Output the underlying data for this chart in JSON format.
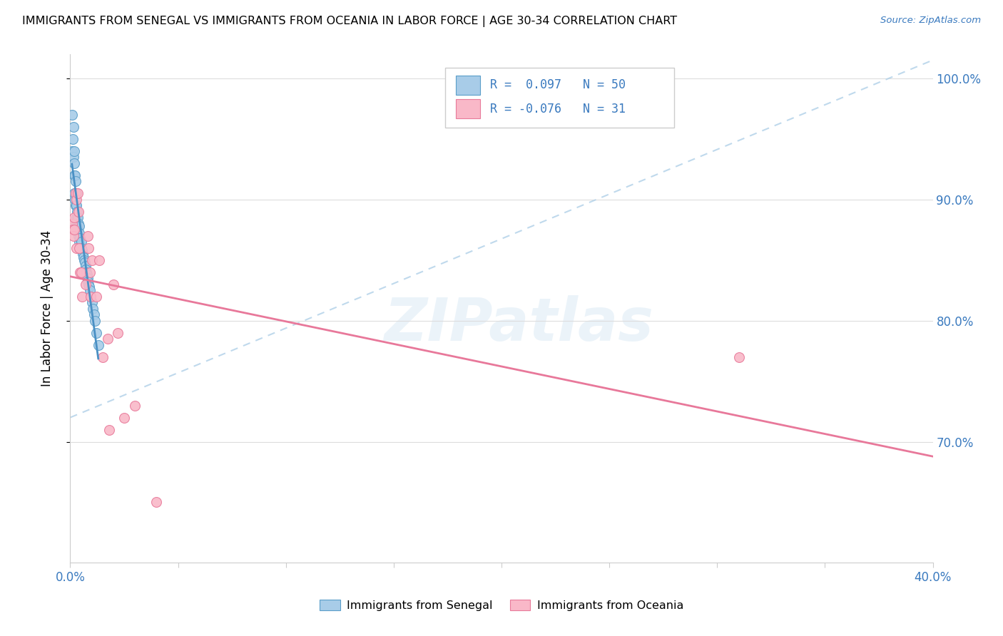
{
  "title": "IMMIGRANTS FROM SENEGAL VS IMMIGRANTS FROM OCEANIA IN LABOR FORCE | AGE 30-34 CORRELATION CHART",
  "source": "Source: ZipAtlas.com",
  "ylabel": "In Labor Force | Age 30-34",
  "watermark": "ZIPatlas",
  "legend_blue_r": "0.097",
  "legend_blue_n": "50",
  "legend_pink_r": "-0.076",
  "legend_pink_n": "31",
  "blue_color": "#a8cce8",
  "pink_color": "#f9b8c8",
  "blue_edge_color": "#5a9ec9",
  "pink_edge_color": "#e87a9a",
  "blue_line_color": "#4a90c4",
  "pink_line_color": "#e8789a",
  "blue_dash_color": "#b0d0e8",
  "xlim": [
    0.0,
    0.4
  ],
  "ylim": [
    0.6,
    1.02
  ],
  "y_ticks": [
    1.0,
    0.9,
    0.8,
    0.7
  ],
  "senegal_x": [
    0.0008,
    0.0008,
    0.0012,
    0.0015,
    0.0015,
    0.0018,
    0.0018,
    0.002,
    0.002,
    0.0022,
    0.0022,
    0.0025,
    0.0025,
    0.0028,
    0.0028,
    0.003,
    0.003,
    0.0032,
    0.0035,
    0.0035,
    0.0038,
    0.0038,
    0.004,
    0.004,
    0.0042,
    0.0045,
    0.0048,
    0.005,
    0.0052,
    0.0055,
    0.0058,
    0.006,
    0.0065,
    0.0068,
    0.007,
    0.0072,
    0.0075,
    0.0078,
    0.008,
    0.0082,
    0.0085,
    0.0088,
    0.009,
    0.0095,
    0.01,
    0.0105,
    0.011,
    0.0115,
    0.012,
    0.013
  ],
  "senegal_y": [
    0.97,
    0.94,
    0.95,
    0.96,
    0.935,
    0.94,
    0.92,
    0.93,
    0.905,
    0.92,
    0.9,
    0.915,
    0.895,
    0.905,
    0.885,
    0.895,
    0.88,
    0.89,
    0.885,
    0.875,
    0.88,
    0.87,
    0.878,
    0.865,
    0.872,
    0.868,
    0.862,
    0.865,
    0.86,
    0.858,
    0.855,
    0.852,
    0.85,
    0.848,
    0.845,
    0.842,
    0.84,
    0.838,
    0.835,
    0.832,
    0.83,
    0.828,
    0.825,
    0.82,
    0.815,
    0.81,
    0.805,
    0.8,
    0.79,
    0.78
  ],
  "oceania_x": [
    0.001,
    0.0012,
    0.0015,
    0.0018,
    0.002,
    0.0025,
    0.0028,
    0.003,
    0.0035,
    0.0038,
    0.004,
    0.0045,
    0.005,
    0.0055,
    0.007,
    0.008,
    0.0085,
    0.009,
    0.0095,
    0.01,
    0.012,
    0.0135,
    0.015,
    0.0175,
    0.018,
    0.02,
    0.022,
    0.025,
    0.03,
    0.04,
    0.31
  ],
  "oceania_y": [
    0.88,
    0.875,
    0.87,
    0.885,
    0.875,
    0.905,
    0.9,
    0.86,
    0.905,
    0.89,
    0.86,
    0.84,
    0.84,
    0.82,
    0.83,
    0.87,
    0.86,
    0.84,
    0.82,
    0.85,
    0.82,
    0.85,
    0.77,
    0.785,
    0.71,
    0.83,
    0.79,
    0.72,
    0.73,
    0.65,
    0.77
  ]
}
